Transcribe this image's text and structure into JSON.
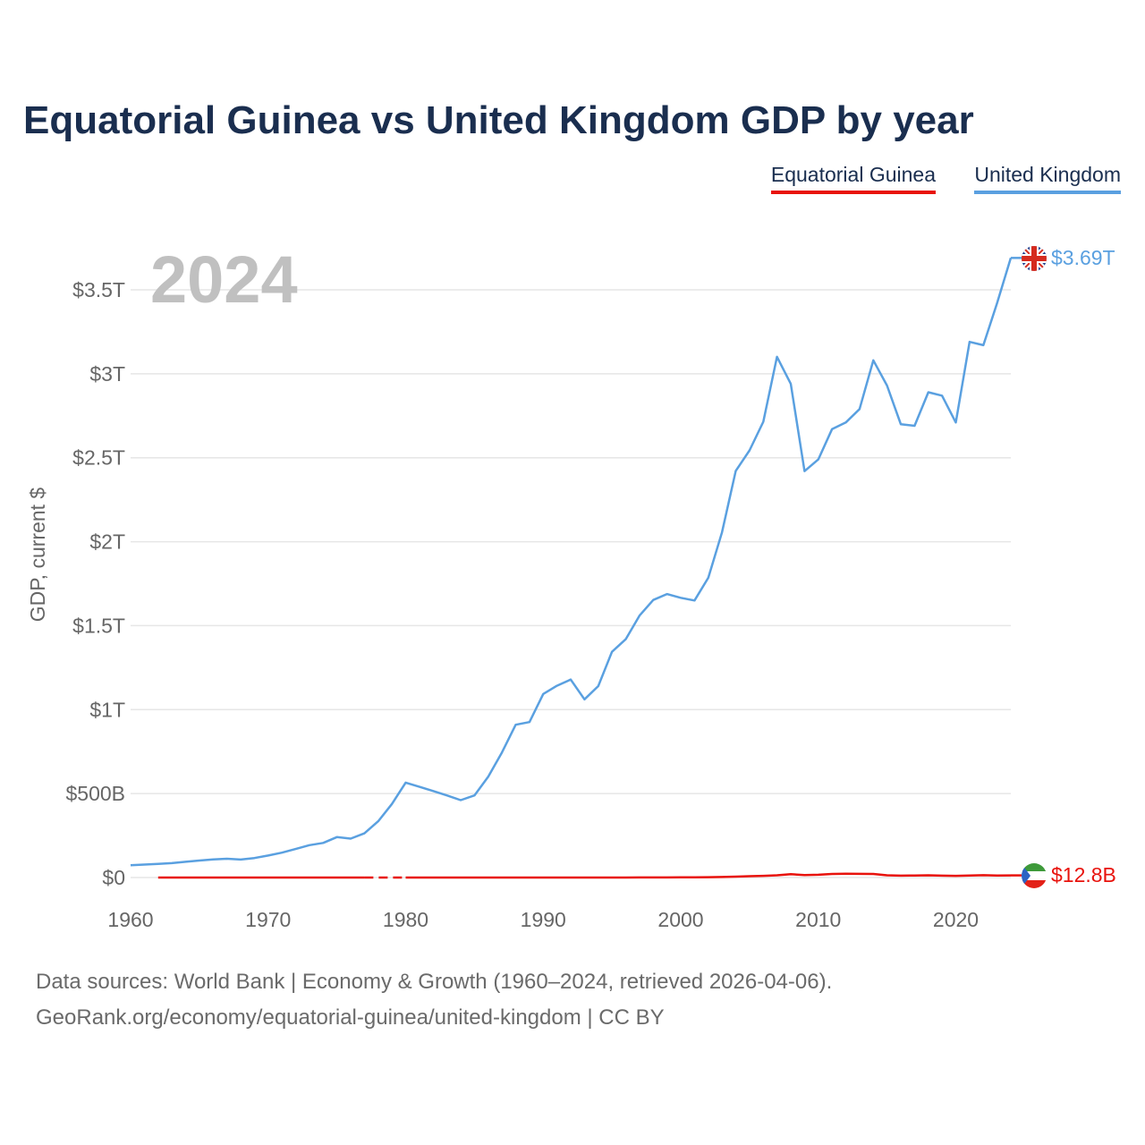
{
  "chart_data": {
    "type": "line",
    "title": "Equatorial Guinea vs United Kingdom GDP by year",
    "year_label": "2024",
    "ylabel": "GDP, current $",
    "xlabel": "",
    "xlim": [
      1960,
      2024
    ],
    "ylim": [
      0,
      3500
    ],
    "value_unit": "billions of current US$",
    "x_ticks": [
      1960,
      1970,
      1980,
      1990,
      2000,
      2010,
      2020
    ],
    "x_tick_labels": [
      "1960",
      "1970",
      "1980",
      "1990",
      "2000",
      "2010",
      "2020"
    ],
    "y_ticks": [
      0,
      500,
      1000,
      1500,
      2000,
      2500,
      3000,
      3500
    ],
    "y_tick_labels": [
      "$0",
      "$500B",
      "$1T",
      "$1.5T",
      "$2T",
      "$2.5T",
      "$3T",
      "$3.5T"
    ],
    "grid": true,
    "legend_position": "top-right",
    "series": [
      {
        "name": "Equatorial Guinea",
        "color": "#e8120c",
        "end_label": "$12.8B",
        "flag_icon": "equatorial-guinea-flag-icon",
        "points": [
          [
            1962,
            0.02
          ],
          [
            1963,
            0.02
          ],
          [
            1964,
            0.02
          ],
          [
            1965,
            0.03
          ],
          [
            1966,
            0.03
          ],
          [
            1967,
            0.03
          ],
          [
            1968,
            0.03
          ],
          [
            1969,
            0.04
          ],
          [
            1970,
            0.04
          ],
          [
            1971,
            0.04
          ],
          [
            1972,
            0.05
          ],
          [
            1973,
            0.06
          ],
          [
            1974,
            0.07
          ],
          [
            1975,
            0.08
          ],
          [
            1976,
            0.07
          ],
          [
            1977,
            0.07
          ],
          [
            1978,
            null
          ],
          [
            1979,
            null
          ],
          [
            1980,
            0.08
          ],
          [
            1981,
            0.08
          ],
          [
            1982,
            0.08
          ],
          [
            1983,
            0.08
          ],
          [
            1984,
            0.08
          ],
          [
            1985,
            0.08
          ],
          [
            1986,
            0.1
          ],
          [
            1987,
            0.11
          ],
          [
            1988,
            0.12
          ],
          [
            1989,
            0.12
          ],
          [
            1990,
            0.13
          ],
          [
            1991,
            0.13
          ],
          [
            1992,
            0.15
          ],
          [
            1993,
            0.15
          ],
          [
            1994,
            0.1
          ],
          [
            1995,
            0.14
          ],
          [
            1996,
            0.23
          ],
          [
            1997,
            0.5
          ],
          [
            1998,
            0.37
          ],
          [
            1999,
            0.62
          ],
          [
            2000,
            1.05
          ],
          [
            2001,
            1.46
          ],
          [
            2002,
            2.2
          ],
          [
            2003,
            3.0
          ],
          [
            2004,
            5.5
          ],
          [
            2005,
            8.2
          ],
          [
            2006,
            10.0
          ],
          [
            2007,
            13.1
          ],
          [
            2008,
            19.7
          ],
          [
            2009,
            15.0
          ],
          [
            2010,
            16.3
          ],
          [
            2011,
            21.2
          ],
          [
            2012,
            22.4
          ],
          [
            2013,
            21.9
          ],
          [
            2014,
            21.3
          ],
          [
            2015,
            13.2
          ],
          [
            2016,
            11.2
          ],
          [
            2017,
            12.2
          ],
          [
            2018,
            13.3
          ],
          [
            2019,
            11.4
          ],
          [
            2020,
            10.1
          ],
          [
            2021,
            12.3
          ],
          [
            2022,
            14.0
          ],
          [
            2023,
            12.1
          ],
          [
            2024,
            12.8
          ]
        ]
      },
      {
        "name": "United Kingdom",
        "color": "#5aa0e0",
        "end_label": "$3.69T",
        "flag_icon": "united-kingdom-flag-icon",
        "points": [
          [
            1960,
            73
          ],
          [
            1961,
            77
          ],
          [
            1962,
            81
          ],
          [
            1963,
            86
          ],
          [
            1964,
            94
          ],
          [
            1965,
            101
          ],
          [
            1966,
            108
          ],
          [
            1967,
            112
          ],
          [
            1968,
            107
          ],
          [
            1969,
            116
          ],
          [
            1970,
            131
          ],
          [
            1971,
            148
          ],
          [
            1972,
            170
          ],
          [
            1973,
            193
          ],
          [
            1974,
            206
          ],
          [
            1975,
            241
          ],
          [
            1976,
            232
          ],
          [
            1977,
            263
          ],
          [
            1978,
            335
          ],
          [
            1979,
            438
          ],
          [
            1980,
            565
          ],
          [
            1981,
            540
          ],
          [
            1982,
            515
          ],
          [
            1983,
            489
          ],
          [
            1984,
            461
          ],
          [
            1985,
            489
          ],
          [
            1986,
            601
          ],
          [
            1987,
            745
          ],
          [
            1988,
            910
          ],
          [
            1989,
            926
          ],
          [
            1990,
            1093
          ],
          [
            1991,
            1142
          ],
          [
            1992,
            1179
          ],
          [
            1993,
            1061
          ],
          [
            1994,
            1140
          ],
          [
            1995,
            1344
          ],
          [
            1996,
            1419
          ],
          [
            1997,
            1560
          ],
          [
            1998,
            1653
          ],
          [
            1999,
            1688
          ],
          [
            2000,
            1666
          ],
          [
            2001,
            1650
          ],
          [
            2002,
            1785
          ],
          [
            2003,
            2055
          ],
          [
            2004,
            2422
          ],
          [
            2005,
            2544
          ],
          [
            2006,
            2714
          ],
          [
            2007,
            3101
          ],
          [
            2008,
            2940
          ],
          [
            2009,
            2420
          ],
          [
            2010,
            2490
          ],
          [
            2011,
            2670
          ],
          [
            2012,
            2710
          ],
          [
            2013,
            2790
          ],
          [
            2014,
            3080
          ],
          [
            2015,
            2930
          ],
          [
            2016,
            2700
          ],
          [
            2017,
            2690
          ],
          [
            2018,
            2890
          ],
          [
            2019,
            2870
          ],
          [
            2020,
            2710
          ],
          [
            2021,
            3190
          ],
          [
            2022,
            3170
          ],
          [
            2023,
            3420
          ],
          [
            2024,
            3690
          ]
        ]
      }
    ]
  },
  "footer": {
    "source": "Data sources: World Bank | Economy & Growth (1960–2024, retrieved 2026-04-06).",
    "url": "GeoRank.org/economy/equatorial-guinea/united-kingdom | CC BY"
  }
}
